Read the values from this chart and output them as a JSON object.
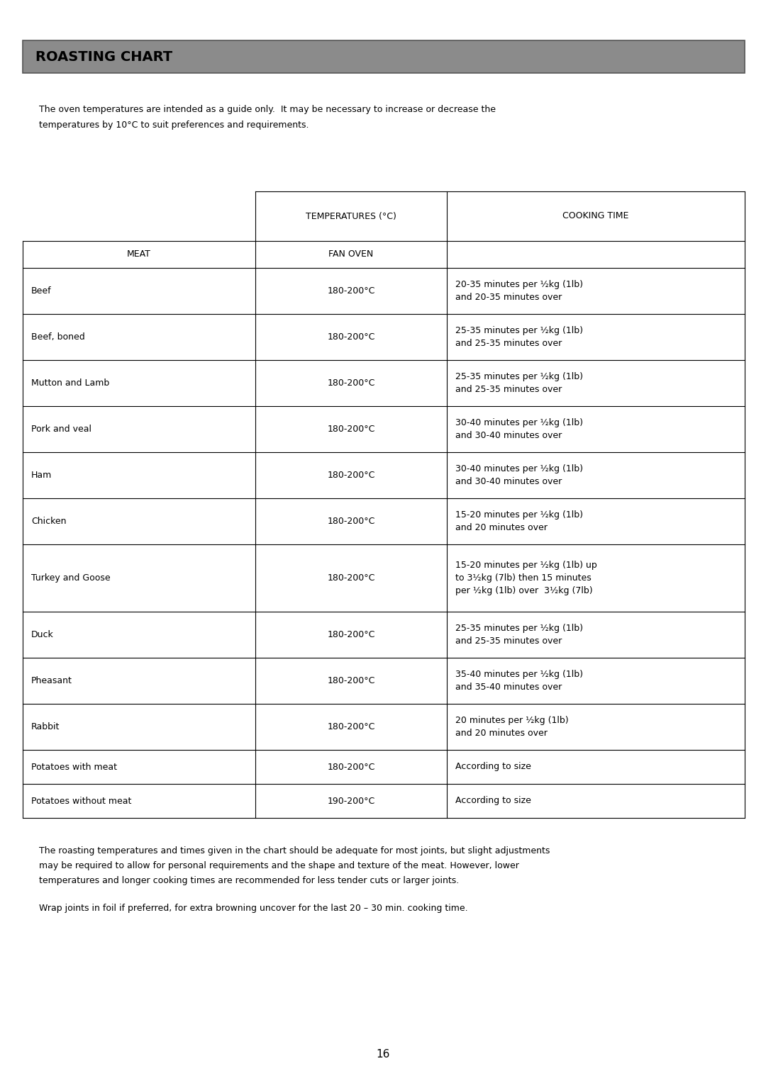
{
  "title": "ROASTING CHART",
  "title_bg_color": "#8B8B8B",
  "title_text_color": "#000000",
  "intro_lines": [
    "The oven temperatures are intended as a guide only.  It may be necessary to increase or decrease the",
    "temperatures by 10°C to suit preferences and requirements."
  ],
  "col_headers": [
    "TEMPERATURES (°C)",
    "COOKING TIME"
  ],
  "sub_headers": [
    "MEAT",
    "FAN OVEN"
  ],
  "rows": [
    {
      "meat": "Beef",
      "temp": "180-200°C",
      "time_lines": [
        "20-35 minutes per ½kg (1lb)",
        "and 20-35 minutes over"
      ]
    },
    {
      "meat": "Beef, boned",
      "temp": "180-200°C",
      "time_lines": [
        "25-35 minutes per ½kg (1lb)",
        "and 25-35 minutes over"
      ]
    },
    {
      "meat": "Mutton and Lamb",
      "temp": "180-200°C",
      "time_lines": [
        "25-35 minutes per ½kg (1lb)",
        "and 25-35 minutes over"
      ]
    },
    {
      "meat": "Pork and veal",
      "temp": "180-200°C",
      "time_lines": [
        "30-40 minutes per ½kg (1lb)",
        "and 30-40 minutes over"
      ]
    },
    {
      "meat": "Ham",
      "temp": "180-200°C",
      "time_lines": [
        "30-40 minutes per ½kg (1lb)",
        "and 30-40 minutes over"
      ]
    },
    {
      "meat": "Chicken",
      "temp": "180-200°C",
      "time_lines": [
        "15-20 minutes per ½kg (1lb)",
        "and 20 minutes over"
      ]
    },
    {
      "meat": "Turkey and Goose",
      "temp": "180-200°C",
      "time_lines": [
        "15-20 minutes per ½kg (1lb) up",
        "to 3½kg (7lb) then 15 minutes",
        "per ½kg (1lb) over  3½kg (7lb)"
      ]
    },
    {
      "meat": "Duck",
      "temp": "180-200°C",
      "time_lines": [
        "25-35 minutes per ½kg (1lb)",
        "and 25-35 minutes over"
      ]
    },
    {
      "meat": "Pheasant",
      "temp": "180-200°C",
      "time_lines": [
        "35-40 minutes per ½kg (1lb)",
        "and 35-40 minutes over"
      ]
    },
    {
      "meat": "Rabbit",
      "temp": "180-200°C",
      "time_lines": [
        "20 minutes per ½kg (1lb)",
        "and 20 minutes over"
      ]
    },
    {
      "meat": "Potatoes with meat",
      "temp": "180-200°C",
      "time_lines": [
        "According to size"
      ]
    },
    {
      "meat": "Potatoes without meat",
      "temp": "190-200°C",
      "time_lines": [
        "According to size"
      ]
    }
  ],
  "footer_lines1": [
    "The roasting temperatures and times given in the chart should be adequate for most joints, but slight adjustments",
    "may be required to allow for personal requirements and the shape and texture of the meat. However, lower",
    "temperatures and longer cooking times are recommended for less tender cuts or larger joints."
  ],
  "footer_line2": "Wrap joints in foil if preferred, for extra browning uncover for the last 20 – 30 min. cooking time.",
  "page_number": "16",
  "background_color": "#FFFFFF",
  "text_color": "#000000",
  "font_size": 9.0,
  "header_font_size": 9.0
}
